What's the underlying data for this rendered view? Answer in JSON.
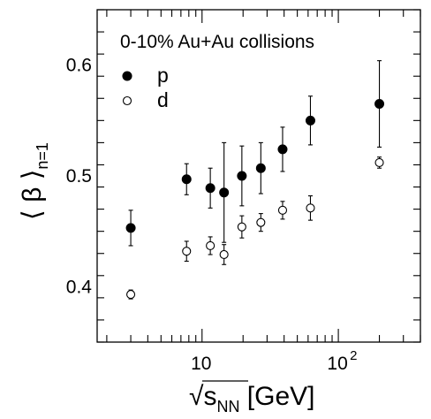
{
  "chart_data": {
    "type": "scatter",
    "title": "",
    "annotation": "0-10% Au+Au collisions",
    "xlabel": {
      "prefix": "√",
      "main": "s",
      "sub": "NN",
      "unit": " [GeV]"
    },
    "ylabel": {
      "main": "⟨ β ⟩",
      "sub": "n=1"
    },
    "xscale": "log",
    "xlim": [
      1.7,
      400
    ],
    "ylim": [
      0.35,
      0.65
    ],
    "grid": false,
    "legend_position": "top-left",
    "x_ticks": [
      {
        "value": 10,
        "label": "10",
        "exp": ""
      },
      {
        "value": 100,
        "label": "10",
        "exp": "2"
      }
    ],
    "y_ticks": [
      {
        "value": 0.4,
        "label": "0.4"
      },
      {
        "value": 0.5,
        "label": "0.5"
      },
      {
        "value": 0.6,
        "label": "0.6"
      }
    ],
    "series": [
      {
        "name": "p",
        "marker": "filled-circle",
        "color": "#000000",
        "x": [
          3.0,
          7.7,
          11.5,
          14.5,
          19.6,
          27,
          39,
          62.4,
          200
        ],
        "y": [
          0.453,
          0.497,
          0.489,
          0.485,
          0.5,
          0.507,
          0.524,
          0.55,
          0.565
        ],
        "yerr": [
          0.016,
          0.014,
          0.018,
          0.045,
          0.027,
          0.023,
          0.02,
          0.022,
          0.039
        ]
      },
      {
        "name": "d",
        "marker": "open-circle",
        "color": "#000000",
        "x": [
          3.0,
          7.7,
          11.5,
          14.5,
          19.6,
          27,
          39,
          62.4,
          200
        ],
        "y": [
          0.393,
          0.432,
          0.437,
          0.429,
          0.454,
          0.458,
          0.469,
          0.471,
          0.512
        ],
        "yerr": [
          0.004,
          0.009,
          0.008,
          0.009,
          0.01,
          0.008,
          0.008,
          0.011,
          0.005
        ]
      }
    ]
  }
}
